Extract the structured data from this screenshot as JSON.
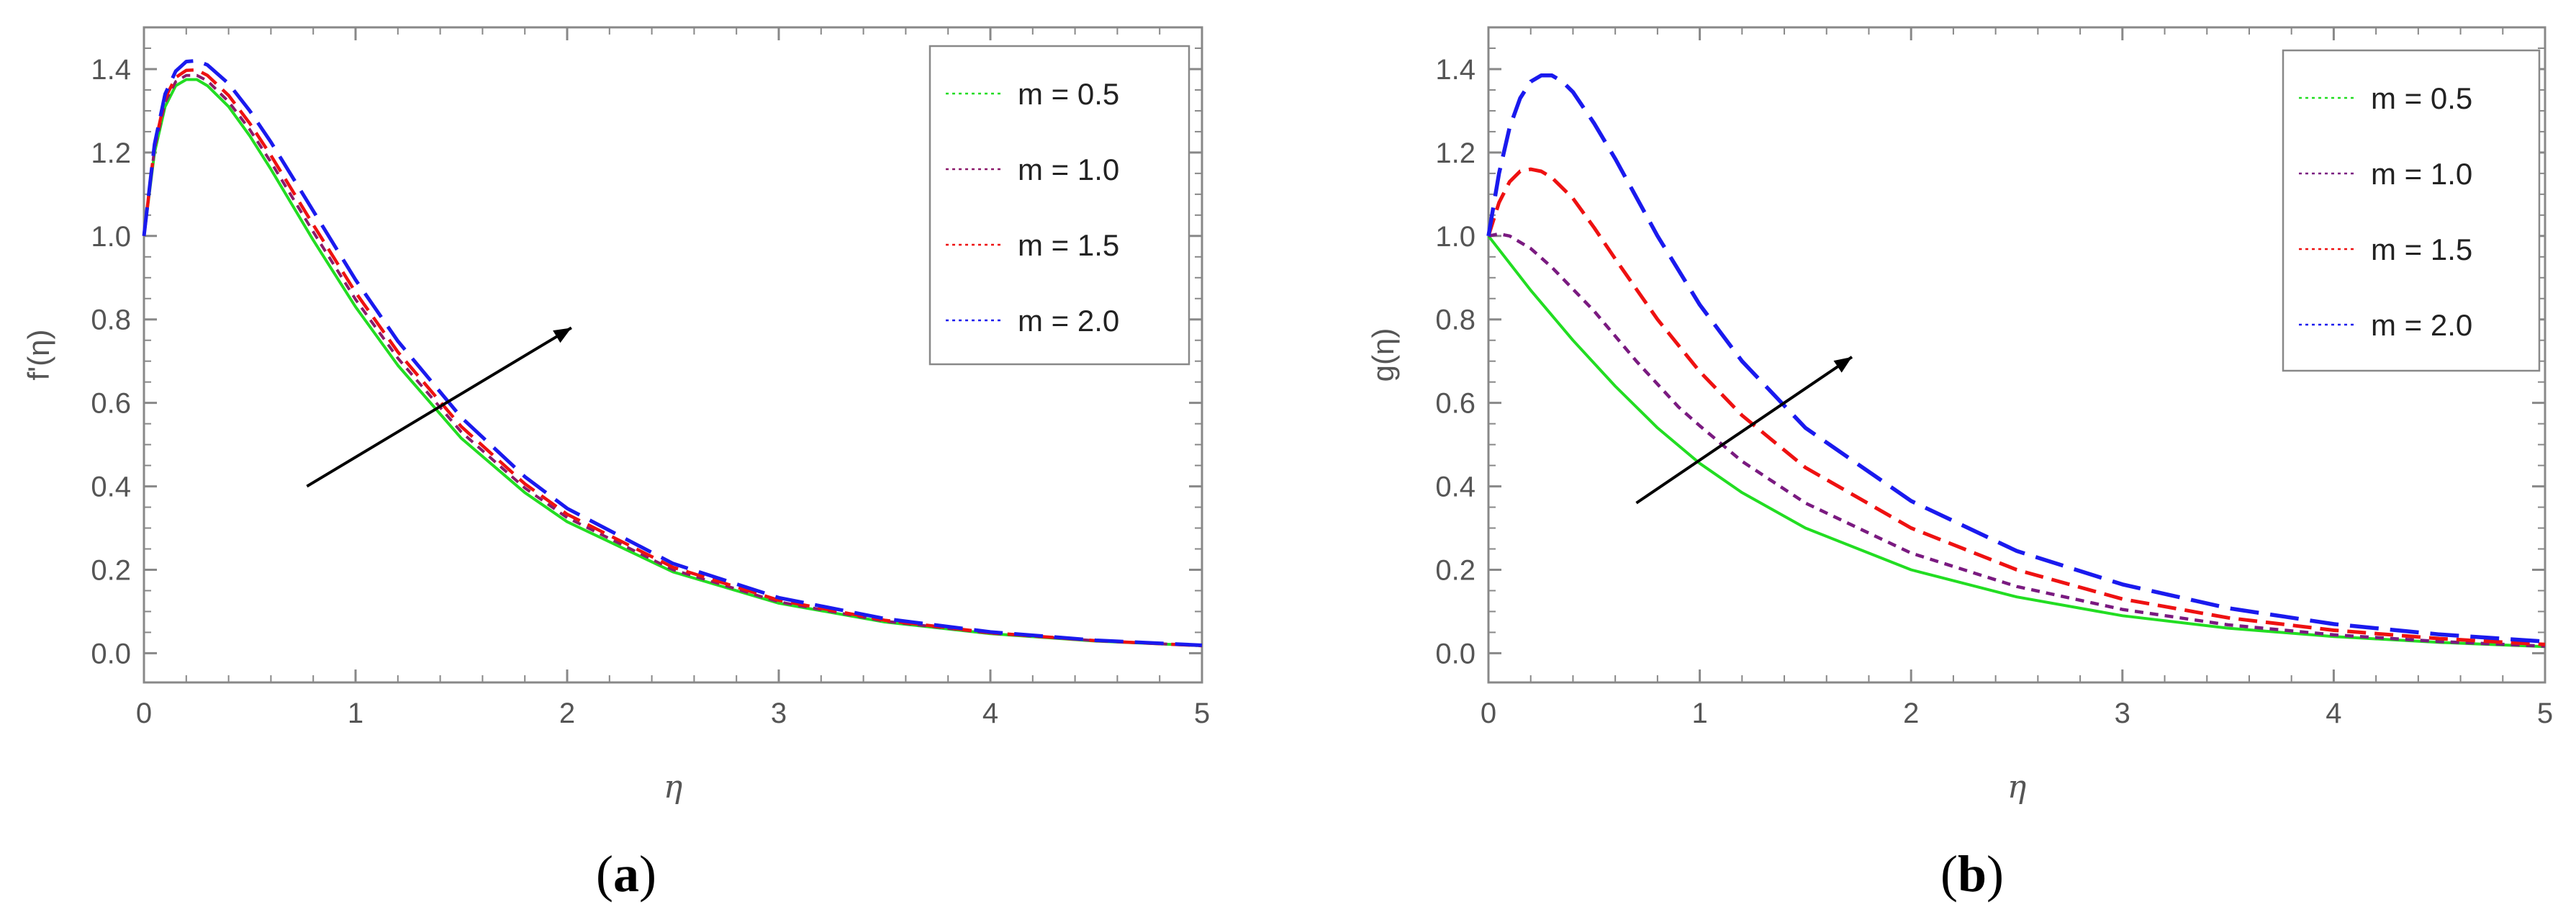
{
  "chart_data": [
    {
      "type": "line",
      "caption_open": "(",
      "caption_letter": "a",
      "caption_close": ")",
      "xlabel": "η",
      "ylabel": "f'(η)",
      "xlim": [
        0,
        5
      ],
      "ylim": [
        -0.07,
        1.5
      ],
      "xticks": [
        0,
        1,
        2,
        3,
        4,
        5
      ],
      "xtick_labels": [
        "0",
        "1",
        "2",
        "3",
        "4",
        "5"
      ],
      "yticks": [
        0.0,
        0.2,
        0.4,
        0.6,
        0.8,
        1.0,
        1.2,
        1.4
      ],
      "ytick_labels": [
        "0.0",
        "0.2",
        "0.4",
        "0.6",
        "0.8",
        "1.0",
        "1.2",
        "1.4"
      ],
      "legend_position": "top-right",
      "arrow": {
        "from": [
          0.77,
          0.4
        ],
        "to": [
          2.02,
          0.78
        ]
      },
      "series": [
        {
          "name": "m = 0.5",
          "color": "#22dd22",
          "dash": "solid",
          "legend_dash": "dotted",
          "width": 4,
          "points": [
            [
              0,
              1.0
            ],
            [
              0.05,
              1.2
            ],
            [
              0.1,
              1.31
            ],
            [
              0.15,
              1.36
            ],
            [
              0.2,
              1.375
            ],
            [
              0.25,
              1.375
            ],
            [
              0.3,
              1.36
            ],
            [
              0.4,
              1.31
            ],
            [
              0.5,
              1.24
            ],
            [
              0.6,
              1.16
            ],
            [
              0.8,
              0.99
            ],
            [
              1.0,
              0.83
            ],
            [
              1.2,
              0.69
            ],
            [
              1.5,
              0.515
            ],
            [
              1.8,
              0.385
            ],
            [
              2.0,
              0.315
            ],
            [
              2.5,
              0.195
            ],
            [
              3.0,
              0.12
            ],
            [
              3.5,
              0.075
            ],
            [
              4.0,
              0.047
            ],
            [
              4.5,
              0.029
            ],
            [
              5.0,
              0.018
            ]
          ]
        },
        {
          "name": "m = 1.0",
          "color": "#8b1a6b",
          "dash": "short",
          "legend_dash": "dotted",
          "width": 4,
          "points": [
            [
              0,
              1.0
            ],
            [
              0.05,
              1.21
            ],
            [
              0.1,
              1.32
            ],
            [
              0.15,
              1.37
            ],
            [
              0.2,
              1.385
            ],
            [
              0.25,
              1.385
            ],
            [
              0.3,
              1.372
            ],
            [
              0.4,
              1.322
            ],
            [
              0.5,
              1.255
            ],
            [
              0.6,
              1.177
            ],
            [
              0.8,
              1.01
            ],
            [
              1.0,
              0.848
            ],
            [
              1.2,
              0.707
            ],
            [
              1.5,
              0.53
            ],
            [
              1.8,
              0.396
            ],
            [
              2.0,
              0.325
            ],
            [
              2.5,
              0.2
            ],
            [
              3.0,
              0.123
            ],
            [
              3.5,
              0.077
            ],
            [
              4.0,
              0.048
            ],
            [
              4.5,
              0.03
            ],
            [
              5.0,
              0.018
            ]
          ]
        },
        {
          "name": "m = 1.5",
          "color": "#ee1111",
          "dash": "medium",
          "legend_dash": "dotted",
          "width": 4.5,
          "points": [
            [
              0,
              1.0
            ],
            [
              0.05,
              1.215
            ],
            [
              0.1,
              1.33
            ],
            [
              0.15,
              1.38
            ],
            [
              0.2,
              1.397
            ],
            [
              0.25,
              1.398
            ],
            [
              0.3,
              1.385
            ],
            [
              0.4,
              1.337
            ],
            [
              0.5,
              1.27
            ],
            [
              0.6,
              1.193
            ],
            [
              0.8,
              1.027
            ],
            [
              1.0,
              0.865
            ],
            [
              1.2,
              0.722
            ],
            [
              1.5,
              0.543
            ],
            [
              1.8,
              0.406
            ],
            [
              2.0,
              0.333
            ],
            [
              2.5,
              0.206
            ],
            [
              3.0,
              0.127
            ],
            [
              3.5,
              0.079
            ],
            [
              4.0,
              0.049
            ],
            [
              4.5,
              0.03
            ],
            [
              5.0,
              0.018
            ]
          ]
        },
        {
          "name": "m = 2.0",
          "color": "#1a1aee",
          "dash": "long",
          "legend_dash": "dotted",
          "width": 5,
          "points": [
            [
              0,
              1.0
            ],
            [
              0.05,
              1.22
            ],
            [
              0.1,
              1.34
            ],
            [
              0.15,
              1.395
            ],
            [
              0.2,
              1.418
            ],
            [
              0.25,
              1.42
            ],
            [
              0.3,
              1.41
            ],
            [
              0.4,
              1.365
            ],
            [
              0.5,
              1.3
            ],
            [
              0.6,
              1.225
            ],
            [
              0.8,
              1.06
            ],
            [
              1.0,
              0.895
            ],
            [
              1.2,
              0.748
            ],
            [
              1.5,
              0.565
            ],
            [
              1.8,
              0.423
            ],
            [
              2.0,
              0.347
            ],
            [
              2.5,
              0.215
            ],
            [
              3.0,
              0.133
            ],
            [
              3.5,
              0.083
            ],
            [
              4.0,
              0.051
            ],
            [
              4.5,
              0.031
            ],
            [
              5.0,
              0.019
            ]
          ]
        }
      ]
    },
    {
      "type": "line",
      "caption_open": "(",
      "caption_letter": "b",
      "caption_close": ")",
      "xlabel": "η",
      "ylabel": "g(η)",
      "xlim": [
        0,
        5
      ],
      "ylim": [
        -0.07,
        1.5
      ],
      "xticks": [
        0,
        1,
        2,
        3,
        4,
        5
      ],
      "xtick_labels": [
        "0",
        "1",
        "2",
        "3",
        "4",
        "5"
      ],
      "yticks": [
        0.0,
        0.2,
        0.4,
        0.6,
        0.8,
        1.0,
        1.2,
        1.4
      ],
      "ytick_labels": [
        "0.0",
        "0.2",
        "0.4",
        "0.6",
        "0.8",
        "1.0",
        "1.2",
        "1.4"
      ],
      "legend_position": "top-right",
      "arrow": {
        "from": [
          0.7,
          0.36
        ],
        "to": [
          1.72,
          0.71
        ]
      },
      "series": [
        {
          "name": "m = 0.5",
          "color": "#22dd22",
          "dash": "solid",
          "legend_dash": "dotted",
          "width": 4,
          "points": [
            [
              0,
              1.0
            ],
            [
              0.2,
              0.87
            ],
            [
              0.4,
              0.75
            ],
            [
              0.6,
              0.64
            ],
            [
              0.8,
              0.54
            ],
            [
              1.0,
              0.455
            ],
            [
              1.2,
              0.385
            ],
            [
              1.5,
              0.3
            ],
            [
              2.0,
              0.2
            ],
            [
              2.5,
              0.135
            ],
            [
              3.0,
              0.09
            ],
            [
              3.5,
              0.06
            ],
            [
              4.0,
              0.04
            ],
            [
              4.5,
              0.026
            ],
            [
              5.0,
              0.016
            ]
          ]
        },
        {
          "name": "m = 1.0",
          "color": "#7a1a80",
          "dash": "short",
          "legend_dash": "dotted",
          "width": 4.5,
          "points": [
            [
              0,
              1.0
            ],
            [
              0.05,
              1.005
            ],
            [
              0.1,
              1.0
            ],
            [
              0.2,
              0.97
            ],
            [
              0.3,
              0.925
            ],
            [
              0.5,
              0.82
            ],
            [
              0.7,
              0.7
            ],
            [
              0.9,
              0.59
            ],
            [
              1.0,
              0.545
            ],
            [
              1.2,
              0.46
            ],
            [
              1.5,
              0.36
            ],
            [
              2.0,
              0.24
            ],
            [
              2.5,
              0.16
            ],
            [
              3.0,
              0.105
            ],
            [
              3.5,
              0.068
            ],
            [
              4.0,
              0.044
            ],
            [
              4.5,
              0.028
            ],
            [
              5.0,
              0.017
            ]
          ]
        },
        {
          "name": "m = 1.5",
          "color": "#ee1111",
          "dash": "medium",
          "legend_dash": "dotted",
          "width": 5,
          "points": [
            [
              0,
              1.0
            ],
            [
              0.05,
              1.08
            ],
            [
              0.1,
              1.13
            ],
            [
              0.15,
              1.155
            ],
            [
              0.2,
              1.16
            ],
            [
              0.25,
              1.155
            ],
            [
              0.3,
              1.14
            ],
            [
              0.4,
              1.09
            ],
            [
              0.5,
              1.02
            ],
            [
              0.6,
              0.945
            ],
            [
              0.8,
              0.8
            ],
            [
              1.0,
              0.675
            ],
            [
              1.2,
              0.57
            ],
            [
              1.5,
              0.445
            ],
            [
              2.0,
              0.3
            ],
            [
              2.5,
              0.2
            ],
            [
              3.0,
              0.13
            ],
            [
              3.5,
              0.085
            ],
            [
              4.0,
              0.055
            ],
            [
              4.5,
              0.035
            ],
            [
              5.0,
              0.021
            ]
          ]
        },
        {
          "name": "m = 2.0",
          "color": "#1a1aee",
          "dash": "long",
          "legend_dash": "dotted",
          "width": 5.5,
          "points": [
            [
              0,
              1.0
            ],
            [
              0.05,
              1.15
            ],
            [
              0.1,
              1.26
            ],
            [
              0.15,
              1.33
            ],
            [
              0.2,
              1.37
            ],
            [
              0.25,
              1.385
            ],
            [
              0.3,
              1.385
            ],
            [
              0.35,
              1.37
            ],
            [
              0.4,
              1.345
            ],
            [
              0.5,
              1.27
            ],
            [
              0.6,
              1.185
            ],
            [
              0.8,
              1.0
            ],
            [
              1.0,
              0.835
            ],
            [
              1.2,
              0.7
            ],
            [
              1.5,
              0.54
            ],
            [
              2.0,
              0.365
            ],
            [
              2.5,
              0.245
            ],
            [
              3.0,
              0.165
            ],
            [
              3.5,
              0.108
            ],
            [
              4.0,
              0.07
            ],
            [
              4.5,
              0.045
            ],
            [
              5.0,
              0.028
            ]
          ]
        }
      ]
    }
  ]
}
